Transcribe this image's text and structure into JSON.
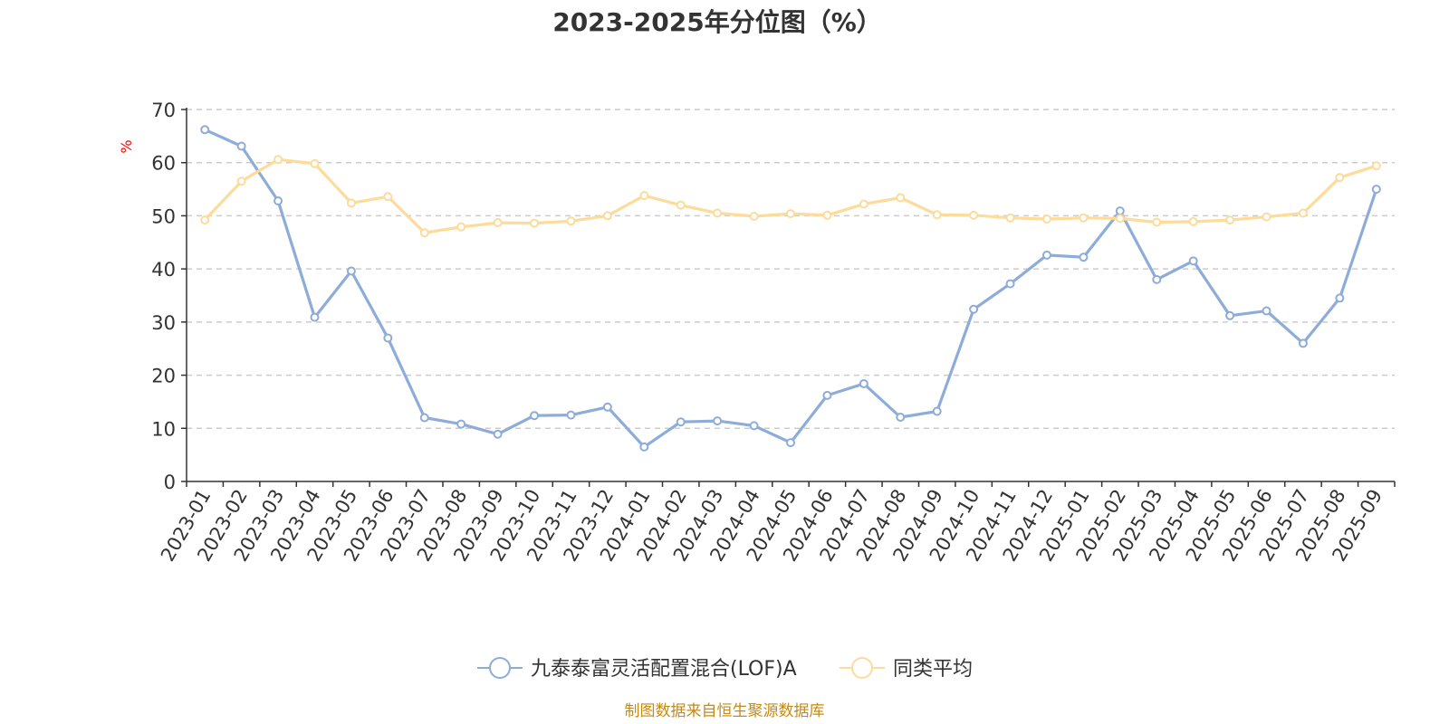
{
  "chart_data": {
    "type": "line",
    "title": "2023-2025年分位图（%）",
    "ylabel": "%",
    "ylim": [
      0,
      70
    ],
    "yticks": [
      0,
      10,
      20,
      30,
      40,
      50,
      60,
      70
    ],
    "grid": true,
    "legend_position": "bottom",
    "categories": [
      "2023-01",
      "2023-02",
      "2023-03",
      "2023-04",
      "2023-05",
      "2023-06",
      "2023-07",
      "2023-08",
      "2023-09",
      "2023-10",
      "2023-11",
      "2023-12",
      "2024-01",
      "2024-02",
      "2024-03",
      "2024-04",
      "2024-05",
      "2024-06",
      "2024-07",
      "2024-08",
      "2024-09",
      "2024-10",
      "2024-11",
      "2024-12",
      "2025-01",
      "2025-02",
      "2025-03",
      "2025-04",
      "2025-05",
      "2025-06",
      "2025-07",
      "2025-08",
      "2025-09"
    ],
    "series": [
      {
        "name": "九泰泰富灵活配置混合(LOF)A",
        "color": "#8eacd9",
        "values": [
          66.2,
          63.1,
          52.8,
          30.9,
          39.6,
          27.0,
          12.0,
          10.8,
          8.9,
          12.4,
          12.5,
          14.0,
          6.5,
          11.2,
          11.4,
          10.5,
          7.3,
          16.2,
          18.4,
          12.1,
          13.2,
          32.4,
          37.2,
          42.6,
          42.2,
          50.9,
          38.0,
          41.5,
          31.2,
          32.1,
          26.0,
          34.5,
          55.0
        ]
      },
      {
        "name": "同类平均",
        "color": "#fddb9a",
        "values": [
          49.2,
          56.5,
          60.6,
          59.8,
          52.4,
          53.6,
          46.8,
          47.9,
          48.7,
          48.6,
          49.0,
          50.0,
          53.8,
          52.0,
          50.5,
          49.9,
          50.4,
          50.1,
          52.2,
          53.4,
          50.2,
          50.1,
          49.6,
          49.4,
          49.6,
          49.5,
          48.8,
          48.9,
          49.2,
          49.8,
          50.5,
          57.2,
          59.4
        ]
      }
    ]
  },
  "colors": {
    "axis": "#333333",
    "grid": "#cccccc",
    "unit": "#ff0000",
    "source": "#c48a14"
  },
  "source_text": "制图数据来自恒生聚源数据库"
}
